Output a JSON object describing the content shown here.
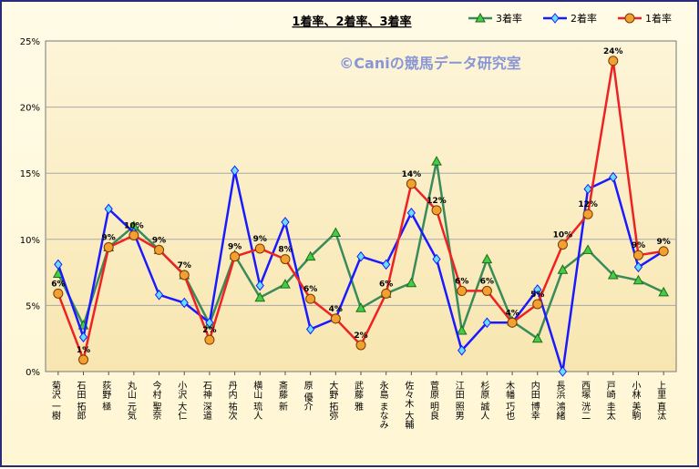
{
  "chart_data": {
    "type": "line",
    "title": "1着率、2着率、3着率",
    "watermark": "©Caniの競馬データ研究室",
    "yticks": [
      "0%",
      "5%",
      "10%",
      "15%",
      "20%",
      "25%"
    ],
    "ylim": [
      0,
      25
    ],
    "grid": true,
    "legend_position": "top-right",
    "categories": [
      "菊沢 一樹",
      "石田 拓郎",
      "荻野 極",
      "丸山 元気",
      "今村 聖奈",
      "小沢 大仁",
      "石神 深道",
      "丹内 祐次",
      "横山 琉人",
      "斎藤 新",
      "原 優介",
      "大野 拓弥",
      "武藤 雅",
      "永島 まなみ",
      "佐々木 大輔",
      "菅原 明良",
      "江田 照男",
      "杉原 誠人",
      "木幡 巧也",
      "内田 博幸",
      "長浜 鴻緒",
      "西塚 洸二",
      "戸崎 圭太",
      "小林 美駒",
      "上里 直汰"
    ],
    "series": [
      {
        "name": "3着率",
        "color": "#3a8a5a",
        "marker": "triangle",
        "marker_fill": "#44cc44",
        "values": [
          7.4,
          3.5,
          9.4,
          11.0,
          9.2,
          7.3,
          3.6,
          8.8,
          5.6,
          6.6,
          8.7,
          10.5,
          4.8,
          5.9,
          6.7,
          15.9,
          3.1,
          8.5,
          3.8,
          2.5,
          7.7,
          9.2,
          7.3,
          6.9,
          6.0
        ]
      },
      {
        "name": "2着率",
        "color": "#1a1aff",
        "marker": "diamond",
        "marker_fill": "#66e0ff",
        "values": [
          8.1,
          2.6,
          12.3,
          10.5,
          5.8,
          5.2,
          3.7,
          15.2,
          6.5,
          11.3,
          3.2,
          4.0,
          8.7,
          8.1,
          12.0,
          8.5,
          1.6,
          3.7,
          3.7,
          6.2,
          0.0,
          13.8,
          14.7,
          7.9,
          9.1
        ]
      },
      {
        "name": "1着率",
        "color": "#ee2222",
        "marker": "circle",
        "marker_fill": "#f2a030",
        "values": [
          5.9,
          0.9,
          9.4,
          10.3,
          9.2,
          7.3,
          2.4,
          8.7,
          9.3,
          8.5,
          5.5,
          4.0,
          2.0,
          5.9,
          14.2,
          12.2,
          6.1,
          6.1,
          3.7,
          5.1,
          9.6,
          11.9,
          23.5,
          8.8,
          9.1
        ],
        "labels": [
          "6%",
          "1%",
          "9%",
          "10%",
          "9%",
          "7%",
          "2%",
          "9%",
          "9%",
          "8%",
          "6%",
          "4%",
          "2%",
          "6%",
          "14%",
          "12%",
          "6%",
          "6%",
          "4%",
          "5%",
          "10%",
          "12%",
          "24%",
          "9%",
          "9%"
        ]
      }
    ]
  }
}
